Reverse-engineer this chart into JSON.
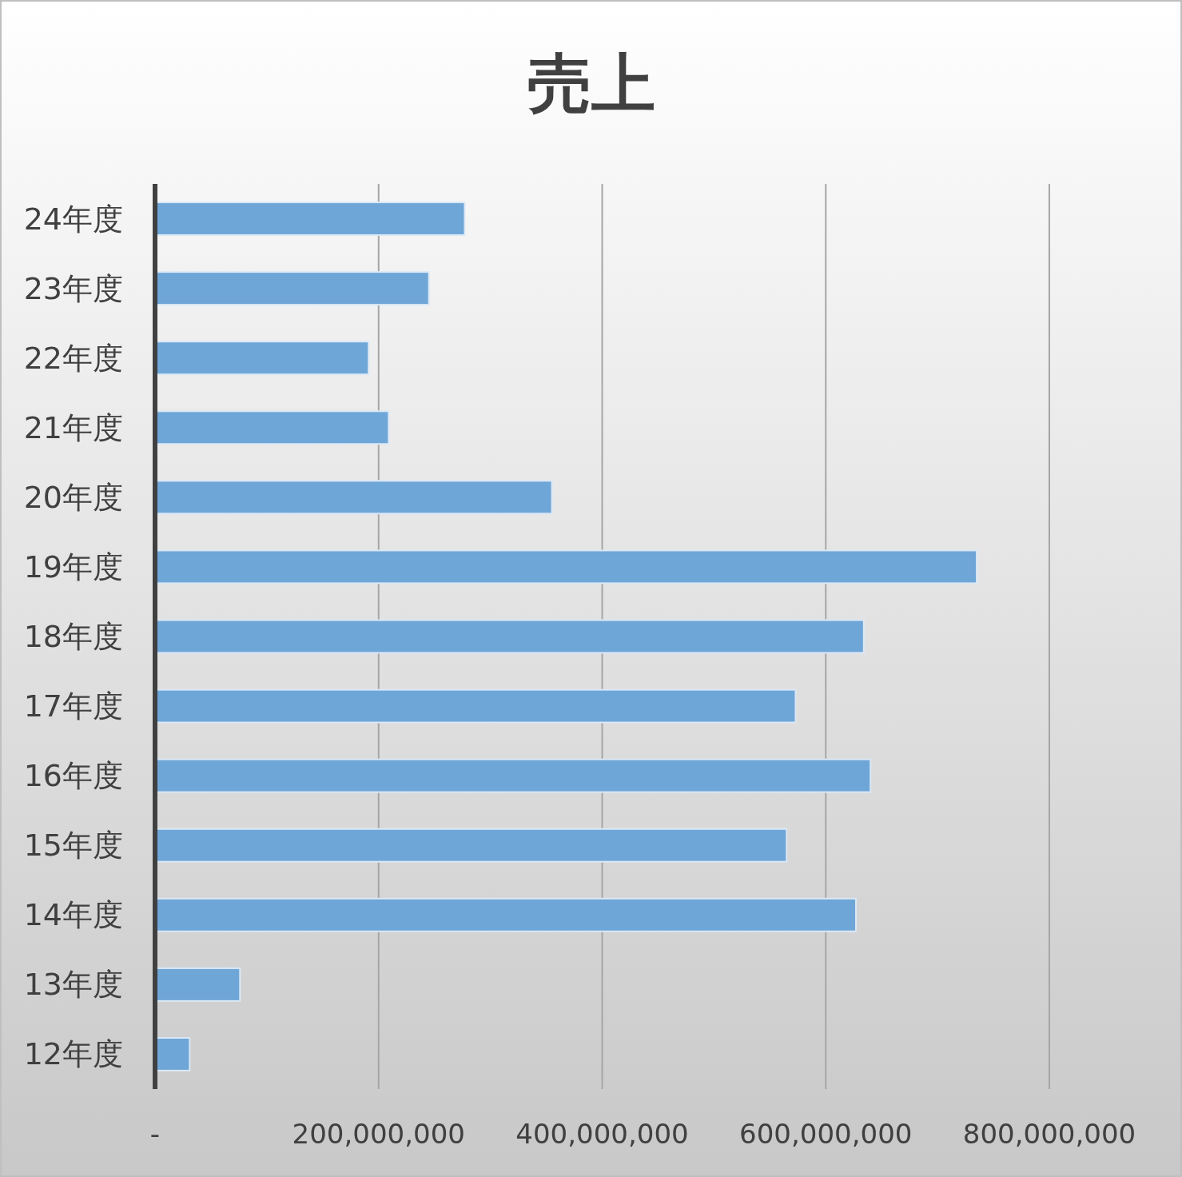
{
  "chart_data": {
    "type": "bar",
    "orientation": "horizontal",
    "title": "売上",
    "categories": [
      "24年度",
      "23年度",
      "22年度",
      "21年度",
      "20年度",
      "19年度",
      "18年度",
      "17年度",
      "16年度",
      "15年度",
      "14年度",
      "13年度",
      "12年度"
    ],
    "values": [
      277000000,
      245000000,
      191000000,
      209000000,
      355000000,
      735000000,
      634000000,
      573000000,
      640000000,
      565000000,
      627000000,
      76000000,
      31000000
    ],
    "color": "#6fa6d8",
    "xlim": [
      0,
      800000000
    ],
    "xticks": [
      {
        "value": 0,
        "label": "-"
      },
      {
        "value": 200000000,
        "label": "200,000,000"
      },
      {
        "value": 400000000,
        "label": "400,000,000"
      },
      {
        "value": 600000000,
        "label": "600,000,000"
      },
      {
        "value": 800000000,
        "label": "800,000,000"
      }
    ],
    "grid": "x"
  }
}
